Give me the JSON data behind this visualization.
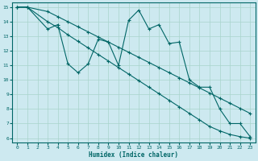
{
  "xlabel": "Humidex (Indice chaleur)",
  "ylabel": "",
  "xlim_min": -0.5,
  "xlim_max": 23.5,
  "ylim_min": 5.7,
  "ylim_max": 15.3,
  "xticks": [
    0,
    1,
    2,
    3,
    4,
    5,
    6,
    7,
    8,
    9,
    10,
    11,
    12,
    13,
    14,
    15,
    16,
    17,
    18,
    19,
    20,
    21,
    22,
    23
  ],
  "yticks": [
    6,
    7,
    8,
    9,
    10,
    11,
    12,
    13,
    14,
    15
  ],
  "background_color": "#cde9f0",
  "line_color": "#006666",
  "grid_color": "#a8d4cc",
  "line1_x": [
    0,
    1,
    3,
    4,
    5,
    6,
    7,
    8,
    9,
    10,
    11,
    12,
    13,
    14,
    15,
    16,
    17,
    18,
    19,
    20,
    21,
    22,
    23
  ],
  "line1_y": [
    15,
    15,
    14.7,
    14.35,
    14.0,
    13.65,
    13.3,
    12.95,
    12.6,
    12.25,
    11.9,
    11.55,
    11.2,
    10.85,
    10.5,
    10.15,
    9.8,
    9.45,
    9.1,
    8.75,
    8.4,
    8.05,
    7.7
  ],
  "line2_x": [
    0,
    1,
    3,
    4,
    5,
    6,
    7,
    8,
    9,
    10,
    11,
    12,
    13,
    14,
    15,
    16,
    17,
    18,
    19,
    20,
    21,
    22,
    23
  ],
  "line2_y": [
    15,
    15,
    14.0,
    13.6,
    13.1,
    12.65,
    12.2,
    11.75,
    11.3,
    10.85,
    10.4,
    9.95,
    9.5,
    9.05,
    8.6,
    8.15,
    7.7,
    7.25,
    6.8,
    6.5,
    6.25,
    6.1,
    6.0
  ],
  "line3_x": [
    0,
    1,
    3,
    4,
    5,
    6,
    7,
    8,
    9,
    10,
    11,
    12,
    13,
    14,
    15,
    16,
    17,
    18,
    19,
    20,
    21,
    22,
    23
  ],
  "line3_y": [
    15,
    15,
    13.5,
    13.8,
    11.1,
    10.5,
    11.1,
    12.8,
    12.6,
    11.0,
    14.1,
    14.8,
    13.5,
    13.8,
    12.5,
    12.6,
    10.0,
    9.5,
    9.5,
    8.0,
    7.0,
    7.0,
    6.1
  ],
  "figsize": [
    3.2,
    2.0
  ],
  "dpi": 100
}
